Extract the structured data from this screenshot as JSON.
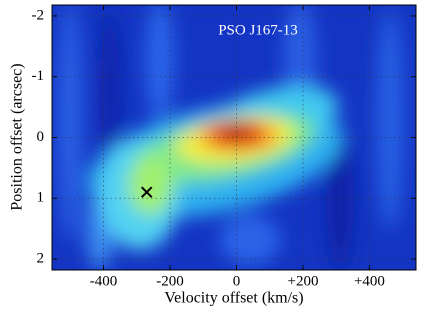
{
  "chart_data": {
    "type": "heatmap",
    "title": "PSO J167-13",
    "xlabel": "Velocity offset (km/s)",
    "ylabel": "Position offset (arcsec)",
    "xlim": [
      -555,
      540
    ],
    "ylim": [
      2.18,
      -2.18
    ],
    "xticks": [
      -400,
      -200,
      0,
      {
        "value": 200,
        "label": "+200"
      },
      {
        "value": 400,
        "label": "+400"
      }
    ],
    "yticks": [
      -2,
      -1,
      0,
      1,
      2
    ],
    "grid": true,
    "marker": {
      "x": -270,
      "y": 0.9
    }
  }
}
